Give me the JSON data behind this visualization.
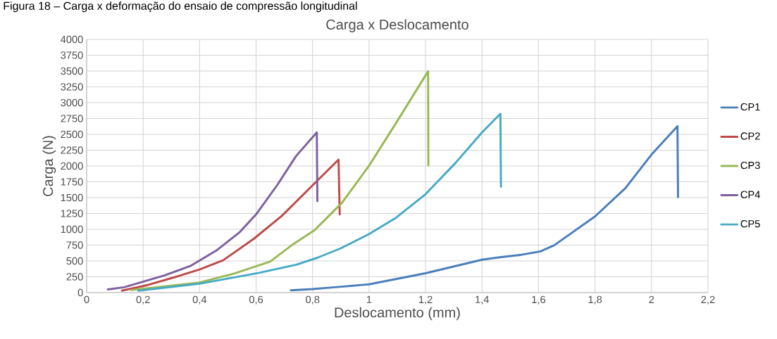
{
  "chart_data": {
    "type": "line",
    "title": "Carga x Deslocamento",
    "xlabel": "Deslocamento (mm)",
    "ylabel": "Carga (N)",
    "annotations": [
      "Figura 18 – Carga x deformação do ensaio de compressão longitudinal"
    ],
    "xlim": [
      0,
      2.2
    ],
    "ylim": [
      0,
      4000
    ],
    "xticks": [
      0,
      {
        "value": 0.2,
        "label": "0,2"
      },
      {
        "value": 0.4,
        "label": "0,4"
      },
      {
        "value": 0.6,
        "label": "0,6"
      },
      {
        "value": 0.8,
        "label": "0,8"
      },
      1,
      {
        "value": 1.2,
        "label": "1,2"
      },
      {
        "value": 1.4,
        "label": "1,4"
      },
      {
        "value": 1.6,
        "label": "1,6"
      },
      {
        "value": 1.8,
        "label": "1,8"
      },
      2,
      {
        "value": 2.2,
        "label": "2,2"
      }
    ],
    "yticks": [
      0,
      250,
      500,
      750,
      1000,
      1250,
      1500,
      1750,
      2000,
      2250,
      2500,
      2750,
      3000,
      3250,
      3500,
      3750,
      4000
    ],
    "grid": true,
    "legend": "right",
    "marker": "none",
    "line_style": "solid",
    "series": [
      {
        "name": "CP1",
        "color": "#4a7ebb",
        "x": [
          0.723,
          0.8,
          0.879,
          1.0,
          1.2,
          1.4,
          1.463,
          1.54,
          1.607,
          1.655,
          1.8,
          1.908,
          2.0,
          2.092,
          2.094
        ],
        "values": [
          37,
          55,
          85,
          130,
          305,
          520,
          559,
          598,
          652,
          746,
          1203,
          1652,
          2180,
          2629,
          1508
        ]
      },
      {
        "name": "CP2",
        "color": "#be4b48",
        "x": [
          0.125,
          0.217,
          0.317,
          0.4,
          0.483,
          0.592,
          0.692,
          0.8,
          0.892,
          0.896
        ],
        "values": [
          30,
          120,
          250,
          365,
          510,
          850,
          1215,
          1695,
          2100,
          1235
        ]
      },
      {
        "name": "CP3",
        "color": "#98b954",
        "x": [
          0.158,
          0.4,
          0.525,
          0.65,
          0.733,
          0.808,
          0.904,
          1.0,
          1.105,
          1.209,
          1.21
        ],
        "values": [
          40,
          160,
          305,
          490,
          770,
          990,
          1418,
          2004,
          2746,
          3496,
          2012
        ]
      },
      {
        "name": "CP4",
        "color": "#7d60a0",
        "x": [
          0.075,
          0.133,
          0.275,
          0.367,
          0.458,
          0.542,
          0.6,
          0.675,
          0.742,
          0.815,
          0.817
        ],
        "values": [
          50,
          85,
          270,
          420,
          660,
          955,
          1235,
          1700,
          2160,
          2530,
          1445
        ]
      },
      {
        "name": "CP5",
        "color": "#46aac5",
        "x": [
          0.183,
          0.4,
          0.608,
          0.742,
          0.817,
          0.9,
          1.0,
          1.096,
          1.2,
          1.305,
          1.4,
          1.465,
          1.467
        ],
        "values": [
          30,
          140,
          310,
          440,
          550,
          700,
          925,
          1184,
          1555,
          2043,
          2531,
          2824,
          1672
        ]
      }
    ]
  }
}
